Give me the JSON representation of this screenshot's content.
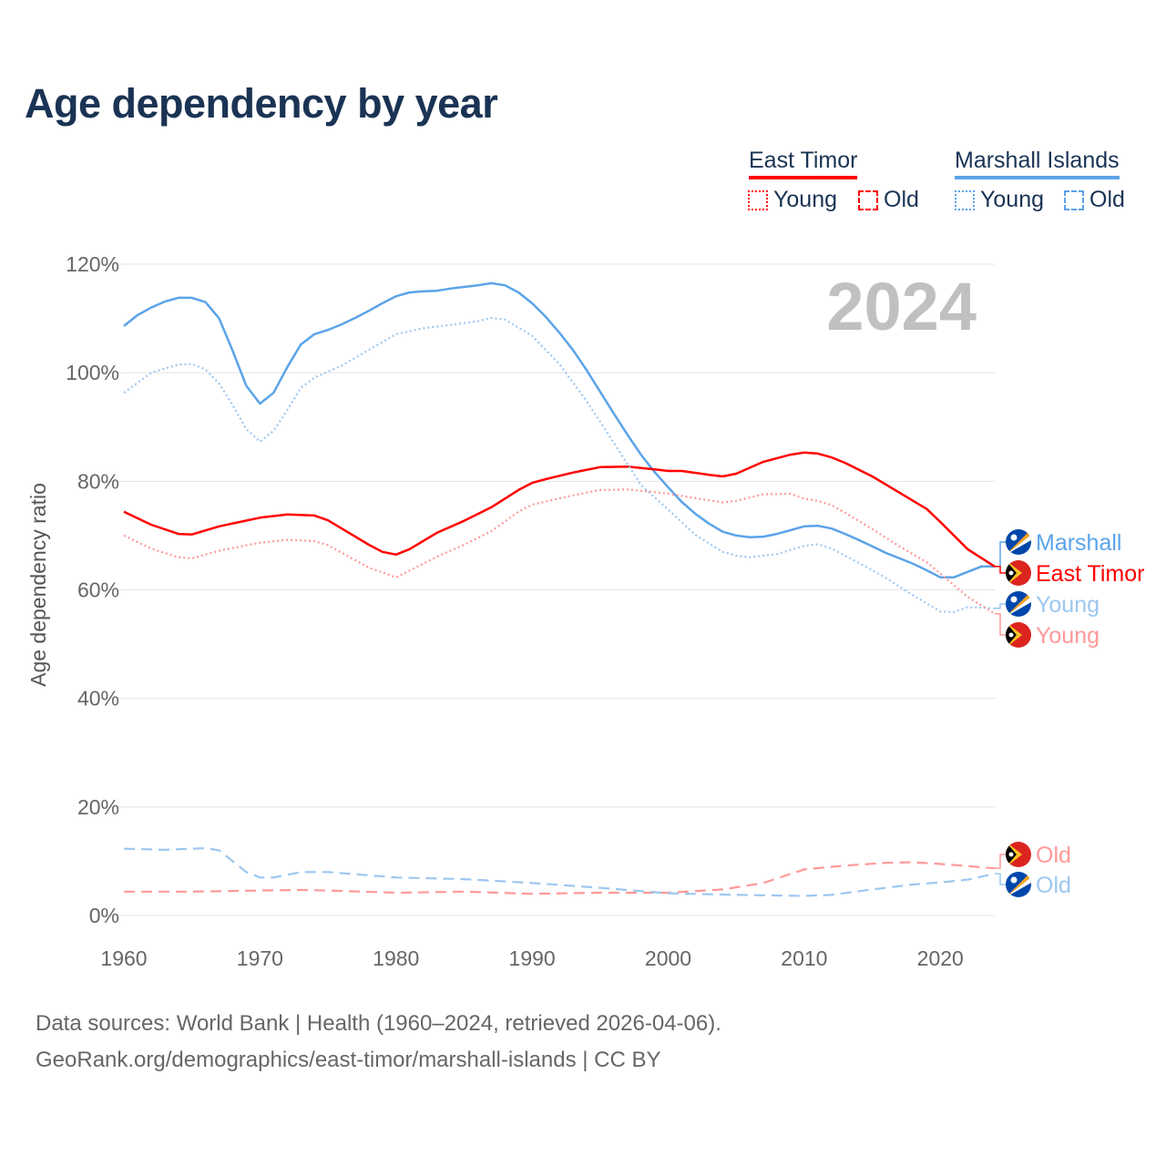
{
  "title": "Age dependency by year",
  "legend": {
    "groups": [
      {
        "name": "East Timor",
        "color": "#ff0000",
        "young_label": "Young",
        "old_label": "Old"
      },
      {
        "name": "Marshall Islands",
        "color": "#5ba3e8",
        "young_label": "Young",
        "old_label": "Old"
      }
    ]
  },
  "year_watermark": "2024",
  "footer": {
    "line1": "Data sources: World Bank | Health (1960–2024, retrieved 2026-04-06).",
    "line2": "GeoRank.org/demographics/east-timor/marshall-islands | CC BY"
  },
  "chart_data": {
    "type": "line",
    "title": "Age dependency by year",
    "xlabel": "",
    "ylabel": "Age dependency ratio",
    "xlim": [
      1960,
      2024
    ],
    "ylim": [
      0,
      120
    ],
    "x_ticks": [
      "1960",
      "1970",
      "1980",
      "1990",
      "2000",
      "2010",
      "2020"
    ],
    "y_ticks": [
      "0%",
      "20%",
      "40%",
      "60%",
      "80%",
      "100%",
      "120%"
    ],
    "grid": true,
    "series": [
      {
        "name": "Marshall Islands",
        "end_label": "Marshall",
        "style": "solid",
        "color": "#5ba3e8",
        "x": [
          1960,
          1961,
          1962,
          1963,
          1964,
          1965,
          1966,
          1967,
          1968,
          1969,
          1970,
          1971,
          1972,
          1973,
          1974,
          1975,
          1976,
          1977,
          1978,
          1979,
          1980,
          1981,
          1982,
          1983,
          1984,
          1985,
          1986,
          1987,
          1988,
          1989,
          1990,
          1991,
          1992,
          1993,
          1994,
          1995,
          1996,
          1997,
          1998,
          1999,
          2000,
          2001,
          2002,
          2003,
          2004,
          2005,
          2006,
          2007,
          2008,
          2009,
          2010,
          2011,
          2012,
          2013,
          2014,
          2015,
          2016,
          2017,
          2018,
          2019,
          2020,
          2021,
          2022,
          2023,
          2024
        ],
        "y": [
          108.6,
          110.6,
          112,
          113.1,
          113.8,
          113.8,
          113,
          110,
          104,
          97.6,
          94.3,
          96.3,
          101,
          105.2,
          107.1,
          107.9,
          108.9,
          110.1,
          111.4,
          112.8,
          114.1,
          114.8,
          115,
          115.1,
          115.5,
          115.8,
          116.1,
          116.5,
          116.1,
          114.8,
          112.8,
          110.3,
          107.4,
          104.2,
          100.5,
          96.5,
          92.5,
          88.6,
          84.9,
          81.7,
          78.9,
          76.2,
          74,
          72.2,
          70.7,
          70,
          69.7,
          69.8,
          70.3,
          71,
          71.7,
          71.8,
          71.3,
          70.3,
          69.2,
          68,
          66.8,
          65.8,
          64.8,
          63.6,
          62.3,
          62.3,
          63.3,
          64.3,
          64.3
        ]
      },
      {
        "name": "East Timor",
        "end_label": "East Timor",
        "style": "solid",
        "color": "#ff0000",
        "x": [
          1960,
          1962,
          1964,
          1965,
          1967,
          1970,
          1972,
          1974,
          1975,
          1978,
          1979,
          1980,
          1981,
          1983,
          1985,
          1987,
          1989,
          1990,
          1991,
          1993,
          1995,
          1997,
          1999,
          2000,
          2001,
          2003,
          2004,
          2005,
          2007,
          2009,
          2010,
          2011,
          2012,
          2013,
          2015,
          2017,
          2019,
          2020,
          2022,
          2024
        ],
        "y": [
          74.4,
          72,
          70.3,
          70.2,
          71.7,
          73.3,
          73.9,
          73.7,
          72.8,
          68.3,
          67,
          66.5,
          67.5,
          70.5,
          72.7,
          75.2,
          78.4,
          79.7,
          80.4,
          81.6,
          82.6,
          82.7,
          82.2,
          81.9,
          81.9,
          81.2,
          80.9,
          81.4,
          83.6,
          84.9,
          85.3,
          85.1,
          84.4,
          83.4,
          80.9,
          77.9,
          74.9,
          72.5,
          67.5,
          64.3
        ]
      },
      {
        "name": "Marshall Islands Young",
        "end_label": "Young",
        "style": "dotted",
        "color": "#9cc7f0",
        "x": [
          1960,
          1962,
          1964,
          1965,
          1966,
          1967,
          1968,
          1969,
          1970,
          1971,
          1972,
          1973,
          1974,
          1976,
          1978,
          1980,
          1982,
          1984,
          1986,
          1987,
          1988,
          1990,
          1992,
          1994,
          1996,
          1998,
          2000,
          2002,
          2004,
          2005,
          2006,
          2008,
          2010,
          2011,
          2012,
          2014,
          2016,
          2018,
          2020,
          2021,
          2022,
          2024
        ],
        "y": [
          96.3,
          100,
          101.5,
          101.6,
          100.6,
          98,
          94,
          89.6,
          87.3,
          89.3,
          93.1,
          97.2,
          99.1,
          101.3,
          104.2,
          107.1,
          108.2,
          108.8,
          109.5,
          110.1,
          109.8,
          106.8,
          101.6,
          94.8,
          87.1,
          79.3,
          74.8,
          70.1,
          67,
          66.3,
          66,
          66.6,
          68.1,
          68.4,
          67.6,
          65,
          62.2,
          59,
          56,
          55.9,
          56.8,
          56.6
        ]
      },
      {
        "name": "East Timor Young",
        "end_label": "Young",
        "style": "dotted",
        "color": "#ff9999",
        "x": [
          1960,
          1962,
          1964,
          1965,
          1967,
          1970,
          1972,
          1974,
          1975,
          1978,
          1980,
          1983,
          1985,
          1987,
          1989,
          1990,
          1993,
          1995,
          1997,
          1999,
          2000,
          2003,
          2004,
          2005,
          2007,
          2009,
          2010,
          2011,
          2012,
          2013,
          2015,
          2017,
          2019,
          2020,
          2022,
          2024
        ],
        "y": [
          70,
          67.6,
          66,
          65.8,
          67.2,
          68.7,
          69.2,
          69,
          68.2,
          64.1,
          62.3,
          66.1,
          68.3,
          70.8,
          74.4,
          75.7,
          77.4,
          78.4,
          78.5,
          78,
          77.7,
          76.5,
          76.1,
          76.4,
          77.6,
          77.7,
          76.8,
          76.4,
          75.6,
          74.2,
          71.2,
          68,
          65.1,
          63,
          58.7,
          55.6
        ]
      },
      {
        "name": "East Timor Old",
        "end_label": "Old",
        "style": "dashed",
        "color": "#ff9999",
        "x": [
          1960,
          1965,
          1970,
          1973,
          1975,
          1980,
          1985,
          1990,
          1995,
          2000,
          2004,
          2007,
          2010,
          2013,
          2016,
          2018,
          2020,
          2024
        ],
        "y": [
          4.4,
          4.4,
          4.6,
          4.7,
          4.6,
          4.2,
          4.4,
          4.0,
          4.2,
          4.2,
          4.8,
          6.0,
          8.5,
          9.2,
          9.7,
          9.8,
          9.5,
          8.7
        ]
      },
      {
        "name": "Marshall Islands Old",
        "end_label": "Old",
        "style": "dashed",
        "color": "#9cc7f0",
        "x": [
          1960,
          1963,
          1966,
          1967,
          1969,
          1970,
          1971,
          1973,
          1975,
          1980,
          1985,
          1990,
          1995,
          2000,
          2005,
          2010,
          2012,
          2015,
          2018,
          2020,
          2022,
          2024
        ],
        "y": [
          12.3,
          12.1,
          12.4,
          12.0,
          8.0,
          7.0,
          7.0,
          8.0,
          8.0,
          7.0,
          6.7,
          6.0,
          5.1,
          4.1,
          3.8,
          3.6,
          3.8,
          4.8,
          5.7,
          6.1,
          6.6,
          7.7
        ]
      }
    ]
  }
}
